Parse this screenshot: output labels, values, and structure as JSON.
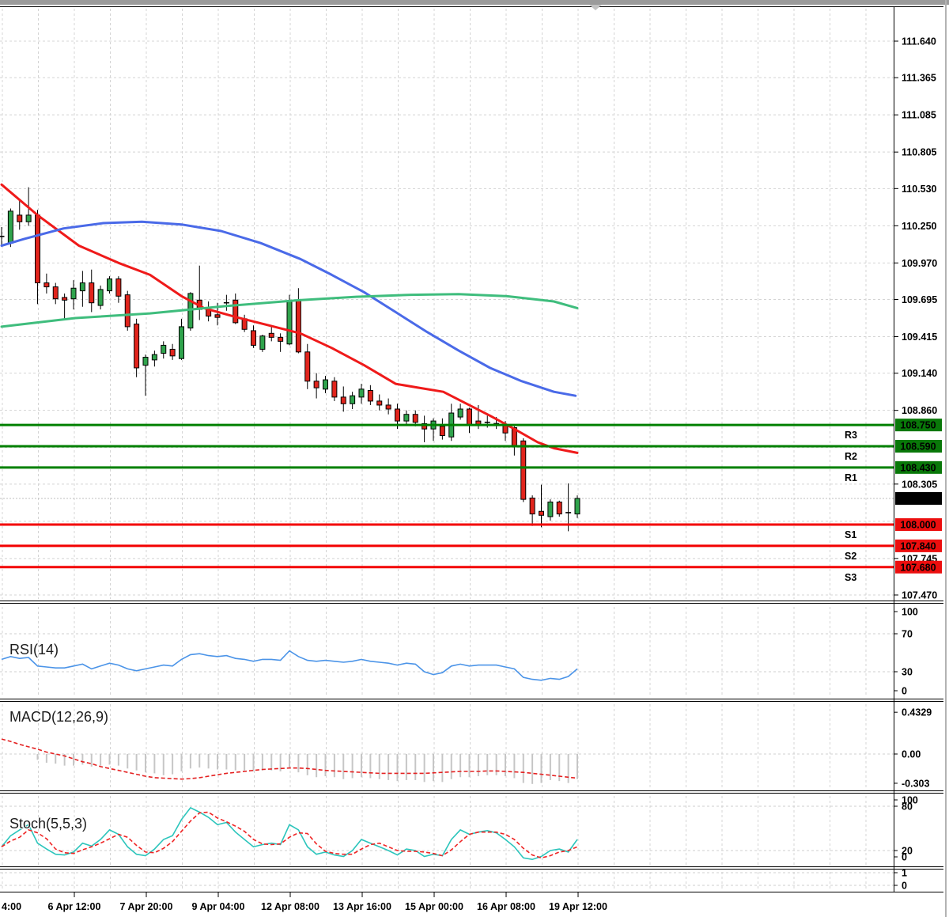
{
  "chart_data": {
    "type": "candlestick",
    "x_axis": {
      "labels": [
        "4:00",
        "6 Apr 12:00",
        "7 Apr 20:00",
        "9 Apr 04:00",
        "12 Apr 08:00",
        "13 Apr 16:00",
        "15 Apr 00:00",
        "16 Apr 08:00",
        "19 Apr 12:00"
      ]
    },
    "price_axis": {
      "plain_ticks": [
        "111.640",
        "111.365",
        "111.085",
        "110.805",
        "110.530",
        "110.250",
        "109.970",
        "109.695",
        "109.415",
        "109.140",
        "108.860",
        "108.305",
        "107.745",
        "107.470"
      ],
      "grid_only": [
        "108.580",
        "108.025"
      ],
      "current_price": "108.197"
    },
    "levels": {
      "resistance": [
        {
          "label": "R3",
          "price": "108.750"
        },
        {
          "label": "R2",
          "price": "108.590"
        },
        {
          "label": "R1",
          "price": "108.430"
        }
      ],
      "support": [
        {
          "label": "S1",
          "price": "108.000"
        },
        {
          "label": "S2",
          "price": "107.840"
        },
        {
          "label": "S3",
          "price": "107.680"
        }
      ]
    },
    "candles": [
      [
        110.17,
        110.24,
        110.1,
        110.17
      ],
      [
        110.12,
        110.38,
        110.09,
        110.36
      ],
      [
        110.33,
        110.45,
        110.22,
        110.28
      ],
      [
        110.28,
        110.54,
        110.25,
        110.33
      ],
      [
        110.33,
        110.37,
        109.66,
        109.82
      ],
      [
        109.82,
        109.89,
        109.74,
        109.79
      ],
      [
        109.79,
        109.82,
        109.66,
        109.7
      ],
      [
        109.71,
        109.74,
        109.55,
        109.69
      ],
      [
        109.7,
        109.84,
        109.62,
        109.78
      ],
      [
        109.76,
        109.91,
        109.64,
        109.82
      ],
      [
        109.82,
        109.92,
        109.6,
        109.67
      ],
      [
        109.65,
        109.8,
        109.62,
        109.77
      ],
      [
        109.76,
        109.87,
        109.74,
        109.85
      ],
      [
        109.85,
        109.87,
        109.67,
        109.72
      ],
      [
        109.73,
        109.76,
        109.46,
        109.49
      ],
      [
        109.51,
        109.55,
        109.11,
        109.18
      ],
      [
        109.2,
        109.28,
        108.97,
        109.26
      ],
      [
        109.24,
        109.31,
        109.19,
        109.28
      ],
      [
        109.29,
        109.38,
        109.25,
        109.35
      ],
      [
        109.32,
        109.36,
        109.24,
        109.27
      ],
      [
        109.25,
        109.55,
        109.24,
        109.49
      ],
      [
        109.48,
        109.75,
        109.46,
        109.74
      ],
      [
        109.69,
        109.95,
        109.54,
        109.62
      ],
      [
        109.62,
        109.68,
        109.53,
        109.57
      ],
      [
        109.58,
        109.67,
        109.5,
        109.56
      ],
      [
        109.67,
        109.73,
        109.61,
        109.67
      ],
      [
        109.69,
        109.74,
        109.51,
        109.52
      ],
      [
        109.55,
        109.58,
        109.45,
        109.47
      ],
      [
        109.46,
        109.5,
        109.33,
        109.35
      ],
      [
        109.32,
        109.43,
        109.3,
        109.42
      ],
      [
        109.44,
        109.49,
        109.38,
        109.41
      ],
      [
        109.41,
        109.44,
        109.3,
        109.38
      ],
      [
        109.36,
        109.73,
        109.35,
        109.68
      ],
      [
        109.69,
        109.78,
        109.29,
        109.3
      ],
      [
        109.3,
        109.36,
        109.02,
        109.08
      ],
      [
        109.08,
        109.14,
        108.95,
        109.03
      ],
      [
        109.02,
        109.12,
        108.99,
        109.09
      ],
      [
        109.08,
        109.11,
        108.93,
        108.96
      ],
      [
        108.96,
        109.04,
        108.85,
        108.91
      ],
      [
        108.91,
        109.0,
        108.87,
        108.97
      ],
      [
        108.96,
        109.06,
        108.91,
        109.02
      ],
      [
        109.01,
        109.05,
        108.9,
        108.93
      ],
      [
        108.93,
        108.98,
        108.86,
        108.9
      ],
      [
        108.9,
        108.95,
        108.83,
        108.87
      ],
      [
        108.87,
        108.91,
        108.72,
        108.78
      ],
      [
        108.78,
        108.86,
        108.75,
        108.83
      ],
      [
        108.83,
        108.86,
        108.74,
        108.77
      ],
      [
        108.76,
        108.82,
        108.62,
        108.72
      ],
      [
        108.72,
        108.8,
        108.63,
        108.78
      ],
      [
        108.74,
        108.8,
        108.64,
        108.67
      ],
      [
        108.66,
        108.91,
        108.63,
        108.84
      ],
      [
        108.81,
        108.91,
        108.79,
        108.87
      ],
      [
        108.87,
        108.88,
        108.69,
        108.75
      ],
      [
        108.78,
        108.9,
        108.72,
        108.75
      ],
      [
        108.77,
        108.82,
        108.73,
        108.77
      ],
      [
        108.76,
        108.81,
        108.72,
        108.76
      ],
      [
        108.75,
        108.78,
        108.63,
        108.69
      ],
      [
        108.73,
        108.74,
        108.52,
        108.59
      ],
      [
        108.63,
        108.65,
        108.17,
        108.19
      ],
      [
        108.2,
        108.22,
        107.99,
        108.08
      ],
      [
        108.1,
        108.3,
        107.98,
        108.07
      ],
      [
        108.06,
        108.19,
        108.03,
        108.17
      ],
      [
        108.17,
        108.18,
        108.06,
        108.08
      ],
      [
        108.09,
        108.31,
        107.95,
        108.09
      ],
      [
        108.08,
        108.22,
        108.05,
        108.197
      ]
    ],
    "moving_averages": [
      {
        "name": "ma-fast-red",
        "color": "#ef1a1a",
        "points": [
          [
            0,
            110.56
          ],
          [
            4,
            110.33
          ],
          [
            8.6,
            110.1
          ],
          [
            13,
            109.97
          ],
          [
            16.5,
            109.88
          ],
          [
            20,
            109.72
          ],
          [
            22.5,
            109.63
          ],
          [
            26.2,
            109.56
          ],
          [
            29.7,
            109.5
          ],
          [
            33.2,
            109.44
          ],
          [
            36.7,
            109.33
          ],
          [
            40.3,
            109.2
          ],
          [
            43.8,
            109.06
          ],
          [
            46.4,
            109.03
          ],
          [
            49.1,
            109.0
          ],
          [
            51.7,
            108.91
          ],
          [
            54.3,
            108.82
          ],
          [
            57,
            108.72
          ],
          [
            59.6,
            108.62
          ],
          [
            61.4,
            108.575
          ],
          [
            64,
            108.54
          ]
        ]
      },
      {
        "name": "ma-mid-blue",
        "color": "#4a6ae8",
        "points": [
          [
            0,
            110.1
          ],
          [
            2.5,
            110.15
          ],
          [
            6.9,
            110.23
          ],
          [
            11.3,
            110.27
          ],
          [
            15.6,
            110.28
          ],
          [
            20,
            110.26
          ],
          [
            24.4,
            110.21
          ],
          [
            28.8,
            110.12
          ],
          [
            33.2,
            110.0
          ],
          [
            36.7,
            109.88
          ],
          [
            40.3,
            109.75
          ],
          [
            43.8,
            109.6
          ],
          [
            47.3,
            109.45
          ],
          [
            50.8,
            109.31
          ],
          [
            54.3,
            109.18
          ],
          [
            57.8,
            109.08
          ],
          [
            61.4,
            109.0
          ],
          [
            63.8,
            108.97
          ]
        ]
      },
      {
        "name": "ma-slow-green",
        "color": "#3fbd7d",
        "points": [
          [
            0,
            109.49
          ],
          [
            8.2,
            109.555
          ],
          [
            16.5,
            109.59
          ],
          [
            24.9,
            109.645
          ],
          [
            33.2,
            109.69
          ],
          [
            39.4,
            109.715
          ],
          [
            45.5,
            109.73
          ],
          [
            50.8,
            109.735
          ],
          [
            56.1,
            109.72
          ],
          [
            61.4,
            109.68
          ],
          [
            64,
            109.63
          ]
        ]
      }
    ],
    "subpanels": {
      "rsi": {
        "label": "RSI(14)",
        "ticks": [
          "100",
          "70",
          "30",
          "0"
        ],
        "color": "#4b94e8",
        "values": [
          43,
          46,
          44,
          45,
          36,
          35,
          34,
          34,
          36,
          38,
          33,
          36,
          39,
          37,
          33,
          31,
          33,
          35,
          37,
          36,
          43,
          48,
          49,
          47,
          46,
          47,
          44,
          43,
          41,
          43,
          43,
          42,
          52,
          46,
          42,
          41,
          42,
          41,
          40,
          41,
          43,
          41,
          40,
          39,
          37,
          39,
          38,
          30,
          27,
          29,
          36,
          38,
          36,
          37,
          37,
          37,
          35,
          33,
          24,
          22,
          21,
          23,
          22,
          25,
          33
        ]
      },
      "macd": {
        "label": "MACD(12,26,9)",
        "ticks": [
          "0.4329",
          "0.00",
          "-0.303"
        ],
        "hist_color": "#c6c6c6",
        "signal_color": "#e42222",
        "histogram": [
          0,
          0,
          0,
          0,
          -0.06,
          -0.09,
          -0.1,
          -0.12,
          -0.12,
          -0.11,
          -0.13,
          -0.12,
          -0.11,
          -0.12,
          -0.15,
          -0.17,
          -0.19,
          -0.2,
          -0.22,
          -0.21,
          -0.18,
          -0.15,
          -0.14,
          -0.15,
          -0.16,
          -0.16,
          -0.17,
          -0.17,
          -0.18,
          -0.17,
          -0.17,
          -0.18,
          -0.15,
          -0.19,
          -0.22,
          -0.24,
          -0.23,
          -0.24,
          -0.26,
          -0.25,
          -0.24,
          -0.25,
          -0.26,
          -0.27,
          -0.28,
          -0.27,
          -0.27,
          -0.29,
          -0.28,
          -0.29,
          -0.26,
          -0.24,
          -0.24,
          -0.23,
          -0.22,
          -0.22,
          -0.23,
          -0.25,
          -0.3,
          -0.31,
          -0.3,
          -0.27,
          -0.28,
          -0.3,
          -0.26
        ],
        "signal": [
          0.155,
          0.13,
          0.1,
          0.075,
          0.05,
          0.02,
          0.0,
          -0.02,
          -0.05,
          -0.08,
          -0.1,
          -0.13,
          -0.15,
          -0.17,
          -0.19,
          -0.21,
          -0.23,
          -0.245,
          -0.25,
          -0.255,
          -0.26,
          -0.255,
          -0.245,
          -0.23,
          -0.215,
          -0.2,
          -0.19,
          -0.18,
          -0.17,
          -0.16,
          -0.155,
          -0.15,
          -0.145,
          -0.145,
          -0.15,
          -0.16,
          -0.17,
          -0.175,
          -0.18,
          -0.185,
          -0.19,
          -0.195,
          -0.2,
          -0.2,
          -0.2,
          -0.2,
          -0.2,
          -0.2,
          -0.195,
          -0.19,
          -0.185,
          -0.18,
          -0.18,
          -0.18,
          -0.175,
          -0.175,
          -0.18,
          -0.185,
          -0.19,
          -0.2,
          -0.21,
          -0.22,
          -0.23,
          -0.24,
          -0.25
        ]
      },
      "stoch": {
        "label": "Stoch(5,5,3)",
        "ticks": [
          "100",
          "80",
          "20",
          "0"
        ],
        "k_color": "#2cc5bc",
        "d_color": "#ef2424",
        "k": [
          25,
          40,
          48,
          55,
          30,
          22,
          15,
          14,
          18,
          30,
          26,
          35,
          48,
          42,
          25,
          15,
          13,
          22,
          35,
          40,
          62,
          78,
          72,
          65,
          55,
          58,
          45,
          35,
          25,
          28,
          30,
          28,
          55,
          48,
          25,
          15,
          18,
          14,
          12,
          20,
          35,
          30,
          25,
          20,
          14,
          22,
          20,
          12,
          15,
          13,
          35,
          48,
          42,
          45,
          47,
          44,
          35,
          25,
          10,
          8,
          12,
          20,
          22,
          18,
          35
        ],
        "d": [
          25,
          33,
          38,
          48,
          44,
          36,
          22,
          17,
          16,
          21,
          25,
          30,
          36,
          42,
          38,
          27,
          18,
          17,
          23,
          32,
          46,
          60,
          71,
          72,
          64,
          59,
          53,
          46,
          35,
          29,
          28,
          29,
          38,
          44,
          43,
          29,
          19,
          16,
          15,
          15,
          22,
          28,
          30,
          25,
          20,
          19,
          19,
          18,
          16,
          13,
          21,
          32,
          42,
          45,
          45,
          45,
          42,
          35,
          23,
          14,
          10,
          13,
          18,
          20,
          25
        ]
      },
      "mini": {
        "ticks": [
          "1",
          "0"
        ]
      }
    },
    "colors": {
      "bull": "#2fa34c",
      "bear": "#e1241c",
      "level_green": "#008000",
      "level_red": "#f30000",
      "badge_green": "#097809",
      "badge_red": "#ec0e0e",
      "badge_black": "#000000",
      "r_label": "#1d8a1d",
      "s_label": "#f25e5e",
      "grid": "#d4d4d4"
    }
  }
}
